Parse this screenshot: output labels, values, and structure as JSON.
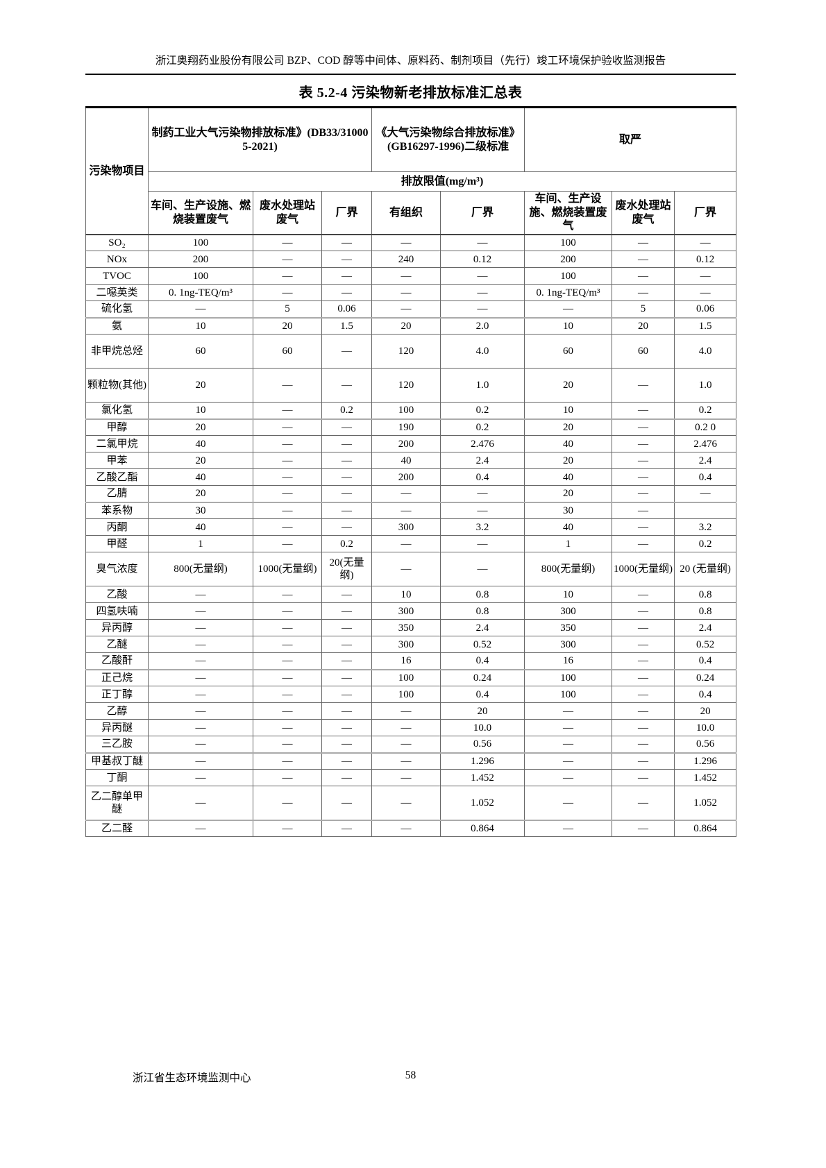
{
  "page": {
    "doc_header": "浙江奥翔药业股份有限公司 BZP、COD 醇等中间体、原料药、制剂项目（先行）竣工环境保护验收监测报告",
    "footer_org": "浙江省生态环境监测中心",
    "page_number": "58"
  },
  "table": {
    "title": "表 5.2-4 污染物新老排放标准汇总表",
    "corner_header": "污染物项目",
    "group_headers": [
      "制药工业大气污染物排放标准》(DB33/310005-2021)",
      "《大气污染物综合排放标准》(GB16297-1996)二级标准",
      "取严"
    ],
    "limit_header": "排放限值(mg/m³)",
    "sub_headers": [
      "车间、生产设施、燃烧装置废气",
      "废水处理站废气",
      "厂界",
      "有组织",
      "厂界",
      "车间、生产设施、燃烧装置废气",
      "废水处理站废气",
      "厂界"
    ],
    "rows": [
      {
        "name": "SO₂",
        "cells": [
          "100",
          "—",
          "—",
          "—",
          "—",
          "100",
          "—",
          "—"
        ]
      },
      {
        "name": "NOx",
        "cells": [
          "200",
          "—",
          "—",
          "240",
          "0.12",
          "200",
          "—",
          "0.12"
        ]
      },
      {
        "name": "TVOC",
        "cells": [
          "100",
          "—",
          "—",
          "—",
          "—",
          "100",
          "—",
          "—"
        ]
      },
      {
        "name": "二噁英类",
        "cells": [
          "0. 1ng-TEQ/m³",
          "—",
          "—",
          "—",
          "—",
          "0. 1ng-TEQ/m³",
          "—",
          "—"
        ]
      },
      {
        "name": "硫化氢",
        "cells": [
          "—",
          "5",
          "0.06",
          "—",
          "—",
          "—",
          "5",
          "0.06"
        ]
      },
      {
        "name": "氨",
        "thick_top": true,
        "cells": [
          "10",
          "20",
          "1.5",
          "20",
          "2.0",
          "10",
          "20",
          "1.5"
        ]
      },
      {
        "name": "非甲烷总烃",
        "tall": true,
        "cells": [
          "60",
          "60",
          "—",
          "120",
          "4.0",
          "60",
          "60",
          "4.0"
        ]
      },
      {
        "name": "颗粒物(其他)",
        "tall": true,
        "cells": [
          "20",
          "—",
          "—",
          "120",
          "1.0",
          "20",
          "—",
          "1.0"
        ]
      },
      {
        "name": "氯化氢",
        "cells": [
          "10",
          "—",
          "0.2",
          "100",
          "0.2",
          "10",
          "—",
          "0.2"
        ]
      },
      {
        "name": "甲醇",
        "thick_top": true,
        "cells": [
          "20",
          "—",
          "—",
          "190",
          "0.2",
          "20",
          "—",
          "0.2 0"
        ]
      },
      {
        "name": "二氯甲烷",
        "cells": [
          "40",
          "—",
          "—",
          "200",
          "2.476",
          "40",
          "—",
          "2.476"
        ]
      },
      {
        "name": "甲苯",
        "cells": [
          "20",
          "—",
          "—",
          "40",
          "2.4",
          "20",
          "—",
          "2.4"
        ]
      },
      {
        "name": "乙酸乙酯",
        "cells": [
          "40",
          "—",
          "—",
          "200",
          "0.4",
          "40",
          "—",
          "0.4"
        ]
      },
      {
        "name": "乙腈",
        "cells": [
          "20",
          "—",
          "—",
          "—",
          "—",
          "20",
          "—",
          "—"
        ]
      },
      {
        "name": "苯系物",
        "thick_top": true,
        "cells": [
          "30",
          "—",
          "—",
          "—",
          "—",
          "30",
          "—",
          ""
        ]
      },
      {
        "name": "丙酮",
        "cells": [
          "40",
          "—",
          "—",
          "300",
          "3.2",
          "40",
          "—",
          "3.2"
        ]
      },
      {
        "name": "甲醛",
        "cells": [
          "1",
          "—",
          "0.2",
          "—",
          "—",
          "1",
          "—",
          "0.2"
        ]
      },
      {
        "name": "臭气浓度",
        "tall": true,
        "cells": [
          "800(无量纲)",
          "1000(无量纲)",
          "20(无量纲)",
          "—",
          "—",
          "800(无量纲)",
          "1000(无量纲)",
          "20 (无量纲)"
        ]
      },
      {
        "name": "乙酸",
        "cells": [
          "—",
          "—",
          "—",
          "10",
          "0.8",
          "10",
          "—",
          "0.8"
        ]
      },
      {
        "name": "四氢呋喃",
        "cells": [
          "—",
          "—",
          "—",
          "300",
          "0.8",
          "300",
          "—",
          "0.8"
        ]
      },
      {
        "name": "异丙醇",
        "cells": [
          "—",
          "—",
          "—",
          "350",
          "2.4",
          "350",
          "—",
          "2.4"
        ]
      },
      {
        "name": "乙醚",
        "cells": [
          "—",
          "—",
          "—",
          "300",
          "0.52",
          "300",
          "—",
          "0.52"
        ]
      },
      {
        "name": "乙酸酐",
        "cells": [
          "—",
          "—",
          "—",
          "16",
          "0.4",
          "16",
          "—",
          "0.4"
        ]
      },
      {
        "name": "正己烷",
        "thick_top": true,
        "cells": [
          "—",
          "—",
          "—",
          "100",
          "0.24",
          "100",
          "—",
          "0.24"
        ]
      },
      {
        "name": "正丁醇",
        "cells": [
          "—",
          "—",
          "—",
          "100",
          "0.4",
          "100",
          "—",
          "0.4"
        ]
      },
      {
        "name": "乙醇",
        "cells": [
          "—",
          "—",
          "—",
          "—",
          "20",
          "—",
          "—",
          "20"
        ]
      },
      {
        "name": "异丙醚",
        "cells": [
          "—",
          "—",
          "—",
          "—",
          "10.0",
          "—",
          "—",
          "10.0"
        ]
      },
      {
        "name": "三乙胺",
        "cells": [
          "—",
          "—",
          "—",
          "—",
          "0.56",
          "—",
          "—",
          "0.56"
        ]
      },
      {
        "name": "甲基叔丁醚",
        "thick_top": true,
        "cells": [
          "—",
          "—",
          "—",
          "—",
          "1.296",
          "—",
          "—",
          "1.296"
        ]
      },
      {
        "name": "丁酮",
        "cells": [
          "—",
          "—",
          "—",
          "—",
          "1.452",
          "—",
          "—",
          "1.452"
        ]
      },
      {
        "name": "乙二醇单甲醚",
        "tall": true,
        "cells": [
          "—",
          "—",
          "—",
          "—",
          "1.052",
          "—",
          "—",
          "1.052"
        ]
      },
      {
        "name": "乙二醛",
        "thick_top": true,
        "cells": [
          "—",
          "—",
          "—",
          "—",
          "0.864",
          "—",
          "—",
          "0.864"
        ]
      }
    ]
  }
}
